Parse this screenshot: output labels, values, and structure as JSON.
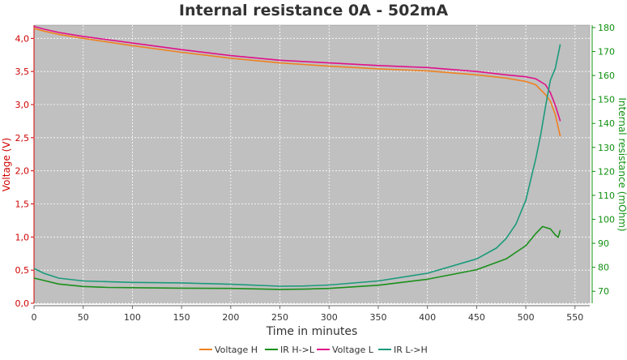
{
  "chart_data": {
    "type": "line",
    "title": "Internal resistance  0A - 502mA",
    "xlabel": "Time in minutes",
    "ylabel_left": "Voltage (V)",
    "ylabel_right": "Internal resistance (mOhm)",
    "xlim": [
      0,
      565
    ],
    "ylim_left": [
      0,
      4.2
    ],
    "ylim_right": [
      65,
      181
    ],
    "x_ticks": [
      "0",
      "50",
      "100",
      "150",
      "200",
      "250",
      "300",
      "350",
      "400",
      "450",
      "500",
      "550"
    ],
    "y_left_ticks": [
      "0,0",
      "0,5",
      "1,0",
      "1,5",
      "2,0",
      "2,5",
      "3,0",
      "3,5",
      "4,0"
    ],
    "y_right_ticks": [
      "70",
      "80",
      "90",
      "100",
      "110",
      "120",
      "130",
      "140",
      "150",
      "160",
      "170",
      "180"
    ],
    "grid": true,
    "legend_position": "bottom",
    "colors": {
      "voltage_h": "#f08020",
      "ir_h_l": "#1a8f1a",
      "voltage_l": "#e0108a",
      "ir_l_h": "#1a9a7a",
      "left_axis": "#d00000",
      "right_axis": "#109010",
      "plot_bg": "#c0c0c0",
      "grid": "#ffffff"
    },
    "series": [
      {
        "name": "Voltage H",
        "axis": "left",
        "x": [
          0,
          10,
          25,
          50,
          100,
          150,
          200,
          250,
          300,
          350,
          400,
          450,
          480,
          500,
          510,
          520,
          525,
          530,
          535
        ],
        "y": [
          4.15,
          4.11,
          4.06,
          4.0,
          3.89,
          3.79,
          3.7,
          3.63,
          3.58,
          3.54,
          3.51,
          3.45,
          3.4,
          3.35,
          3.3,
          3.15,
          3.05,
          2.85,
          2.52
        ]
      },
      {
        "name": "IR H->L",
        "axis": "right",
        "x": [
          0,
          10,
          25,
          50,
          75,
          100,
          150,
          200,
          250,
          275,
          300,
          350,
          400,
          450,
          480,
          500,
          510,
          517,
          525,
          530,
          533,
          535
        ],
        "y": [
          75.5,
          74.5,
          73.0,
          72.0,
          71.6,
          71.5,
          71.3,
          71.2,
          70.8,
          70.9,
          71.2,
          72.5,
          75.0,
          79.0,
          83.5,
          89.0,
          94.0,
          97.0,
          96.0,
          93.5,
          92.5,
          95.5
        ]
      },
      {
        "name": "Voltage L",
        "axis": "left",
        "x": [
          0,
          10,
          25,
          50,
          100,
          150,
          200,
          250,
          300,
          350,
          400,
          450,
          480,
          500,
          510,
          520,
          525,
          530,
          535
        ],
        "y": [
          4.18,
          4.14,
          4.09,
          4.03,
          3.93,
          3.83,
          3.74,
          3.67,
          3.63,
          3.59,
          3.56,
          3.5,
          3.45,
          3.42,
          3.39,
          3.3,
          3.18,
          2.99,
          2.75
        ]
      },
      {
        "name": "IR L->H",
        "axis": "right",
        "x": [
          0,
          10,
          25,
          50,
          75,
          100,
          150,
          200,
          250,
          275,
          300,
          350,
          400,
          450,
          470,
          480,
          490,
          500,
          510,
          515,
          520,
          525,
          530,
          535
        ],
        "y": [
          79.5,
          77.5,
          75.5,
          74.3,
          74.0,
          73.7,
          73.5,
          72.9,
          72.1,
          72.2,
          72.6,
          74.3,
          77.5,
          83.5,
          88.0,
          92.0,
          98.0,
          108.0,
          125.0,
          135.0,
          147.0,
          158.0,
          163.0,
          173.0
        ]
      }
    ]
  }
}
